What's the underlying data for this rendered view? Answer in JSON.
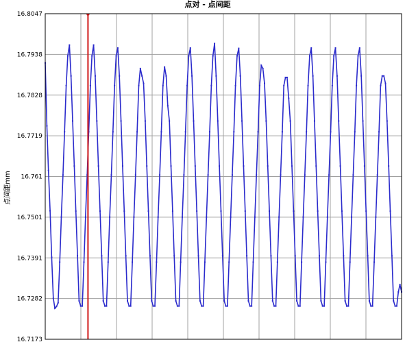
{
  "chart_data": {
    "type": "line",
    "title": "点对 - 点间距",
    "ylabel": "点间距mm",
    "xlabel": "",
    "ylim": [
      16.7173,
      16.8047
    ],
    "y_ticks": [
      "16.8047",
      "16.7938",
      "16.7828",
      "16.7719",
      "16.761",
      "16.7501",
      "16.7391",
      "16.7282",
      "16.7173"
    ],
    "xlim": [
      0,
      225
    ],
    "x_grid_count": 10,
    "grid": true,
    "colors": {
      "series": "#2b2bcc",
      "marker": "#d01818",
      "grid": "#a0a0a0",
      "axis": "#000000"
    },
    "marker_x": 27,
    "series": [
      {
        "values": [
          16.7915,
          16.7746,
          16.7626,
          16.7518,
          16.7393,
          16.7283,
          16.7256,
          16.7261,
          16.7271,
          16.738,
          16.7501,
          16.7614,
          16.773,
          16.7854,
          16.7934,
          16.7963,
          16.788,
          16.7759,
          16.7638,
          16.7517,
          16.7397,
          16.7276,
          16.7262,
          16.7262,
          16.738,
          16.7501,
          16.7614,
          16.773,
          16.7854,
          16.7934,
          16.7963,
          16.788,
          16.7759,
          16.7638,
          16.7517,
          16.7397,
          16.7276,
          16.7262,
          16.7262,
          16.738,
          16.7501,
          16.7614,
          16.773,
          16.7854,
          16.7934,
          16.7955,
          16.788,
          16.7759,
          16.7638,
          16.7517,
          16.7397,
          16.7276,
          16.7262,
          16.7262,
          16.738,
          16.7501,
          16.7614,
          16.773,
          16.7854,
          16.79,
          16.788,
          16.786,
          16.7759,
          16.7638,
          16.7517,
          16.7397,
          16.7276,
          16.7262,
          16.7262,
          16.738,
          16.7501,
          16.7614,
          16.773,
          16.7854,
          16.7904,
          16.788,
          16.78,
          16.7759,
          16.7638,
          16.7517,
          16.7397,
          16.7276,
          16.7262,
          16.7262,
          16.738,
          16.7501,
          16.7614,
          16.773,
          16.7854,
          16.7934,
          16.7955,
          16.788,
          16.7759,
          16.7638,
          16.7517,
          16.7397,
          16.7276,
          16.7262,
          16.7262,
          16.738,
          16.7501,
          16.7614,
          16.773,
          16.7854,
          16.7934,
          16.7967,
          16.788,
          16.7759,
          16.7638,
          16.7517,
          16.7397,
          16.7276,
          16.7262,
          16.7262,
          16.738,
          16.7501,
          16.7614,
          16.773,
          16.7854,
          16.7934,
          16.7954,
          16.788,
          16.7759,
          16.7638,
          16.7517,
          16.7397,
          16.7276,
          16.7262,
          16.7262,
          16.738,
          16.7501,
          16.7614,
          16.773,
          16.7854,
          16.7908,
          16.79,
          16.786,
          16.7759,
          16.7638,
          16.7517,
          16.7397,
          16.7276,
          16.7262,
          16.7262,
          16.738,
          16.7501,
          16.7614,
          16.773,
          16.7854,
          16.7876,
          16.7876,
          16.782,
          16.7759,
          16.7638,
          16.7517,
          16.7397,
          16.7276,
          16.7262,
          16.7262,
          16.738,
          16.7501,
          16.7614,
          16.773,
          16.7854,
          16.7934,
          16.7955,
          16.788,
          16.7759,
          16.7638,
          16.7517,
          16.7397,
          16.7276,
          16.7262,
          16.7262,
          16.738,
          16.7501,
          16.7614,
          16.773,
          16.7854,
          16.7934,
          16.7955,
          16.788,
          16.7759,
          16.7638,
          16.7517,
          16.7397,
          16.7276,
          16.7262,
          16.7262,
          16.738,
          16.7501,
          16.7614,
          16.773,
          16.7854,
          16.7934,
          16.7955,
          16.788,
          16.7759,
          16.7638,
          16.7517,
          16.7397,
          16.7276,
          16.7262,
          16.7262,
          16.738,
          16.7501,
          16.7614,
          16.773,
          16.7854,
          16.788,
          16.788,
          16.786,
          16.7759,
          16.7638,
          16.7517,
          16.7397,
          16.7276,
          16.7262,
          16.7262,
          16.73,
          16.732,
          16.73
        ]
      }
    ]
  }
}
